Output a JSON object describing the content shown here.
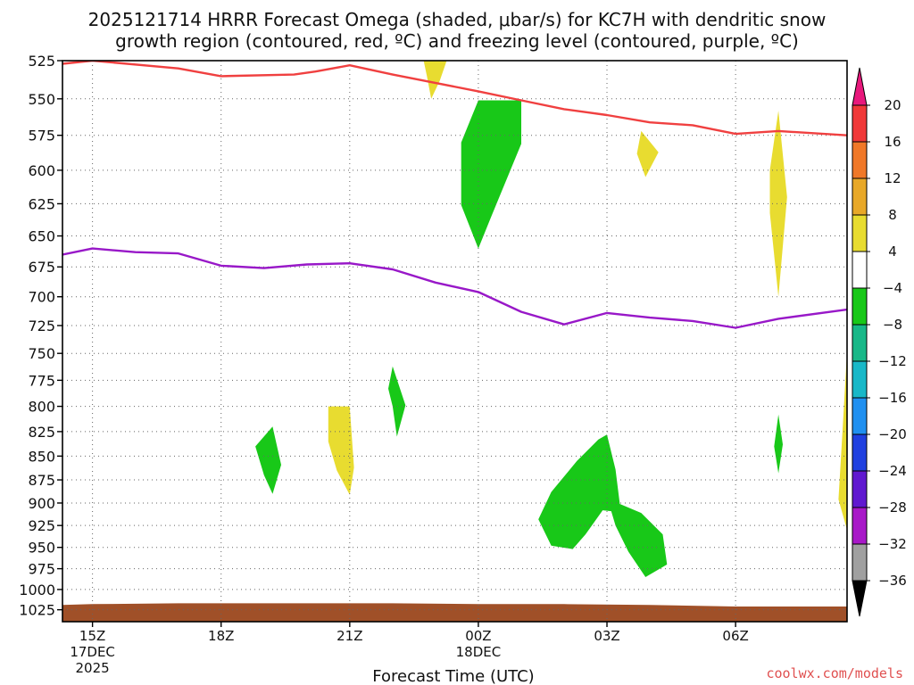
{
  "title_line1": "2025121714 HRRR Forecast Omega (shaded, μbar/s) for KC7H with dendritic snow",
  "title_line2": "growth region (contoured, red, ºC) and freezing level (contoured, purple, ºC)",
  "credit": "coolwx.com/models",
  "chart_data": {
    "type": "time-height cross-section",
    "xlabel": "Forecast Time (UTC)",
    "x_range_hours": [
      14.3,
      32.6
    ],
    "x_ticks": [
      {
        "hour": 15,
        "label": "15Z",
        "sub1": "17DEC",
        "sub2": "2025"
      },
      {
        "hour": 18,
        "label": "18Z",
        "sub1": "",
        "sub2": ""
      },
      {
        "hour": 21,
        "label": "21Z",
        "sub1": "",
        "sub2": ""
      },
      {
        "hour": 24,
        "label": "00Z",
        "sub1": "18DEC",
        "sub2": ""
      },
      {
        "hour": 27,
        "label": "03Z",
        "sub1": "",
        "sub2": ""
      },
      {
        "hour": 30,
        "label": "06Z",
        "sub1": "",
        "sub2": ""
      }
    ],
    "y_axis": "pressure (mb), log scale, inverted",
    "y_range": [
      525,
      1040
    ],
    "y_ticks": [
      525,
      550,
      575,
      600,
      625,
      650,
      675,
      700,
      725,
      750,
      775,
      800,
      825,
      850,
      875,
      900,
      925,
      950,
      975,
      1000,
      1025
    ],
    "grid": true,
    "colorbar": {
      "labels": [
        20,
        16,
        12,
        8,
        4,
        -4,
        -8,
        -12,
        -16,
        -20,
        -24,
        -28,
        -32,
        -36
      ],
      "colors": [
        "#f03838",
        "#f07828",
        "#e8a828",
        "#e8dc30",
        "#ffffff",
        "#18c818",
        "#18b888",
        "#18b8c8",
        "#2090f0",
        "#2040e0",
        "#6018d0",
        "#a818c8",
        "#a0a0a0"
      ],
      "top_arrow_color": "#e8187c",
      "bottom_arrow_color": "#000000"
    },
    "contours": [
      {
        "name": "dendritic growth (red)",
        "color": "#f04040",
        "points": [
          [
            14.3,
            527
          ],
          [
            15,
            525
          ],
          [
            17,
            530
          ],
          [
            18,
            535
          ],
          [
            19.7,
            534
          ],
          [
            20.2,
            532
          ],
          [
            21,
            528
          ],
          [
            22,
            534
          ],
          [
            24,
            545
          ],
          [
            25,
            551
          ],
          [
            26,
            557
          ],
          [
            27,
            561
          ],
          [
            28,
            566
          ],
          [
            29,
            568
          ],
          [
            30,
            574
          ],
          [
            31,
            572
          ],
          [
            32.6,
            575
          ]
        ]
      },
      {
        "name": "freezing level (purple)",
        "color": "#9818c8",
        "points": [
          [
            14.3,
            665
          ],
          [
            15,
            660
          ],
          [
            16,
            663
          ],
          [
            17,
            664
          ],
          [
            18,
            674
          ],
          [
            19,
            676
          ],
          [
            20,
            673
          ],
          [
            21,
            672
          ],
          [
            22,
            677
          ],
          [
            23,
            688
          ],
          [
            24,
            696
          ],
          [
            25,
            713
          ],
          [
            26,
            724
          ],
          [
            27,
            714
          ],
          [
            28,
            718
          ],
          [
            29,
            721
          ],
          [
            30,
            727
          ],
          [
            31,
            719
          ],
          [
            32.6,
            711
          ]
        ]
      }
    ],
    "shaded_regions": [
      {
        "value": 6,
        "color": "#e8dc30",
        "points": [
          [
            22.7,
            522
          ],
          [
            23.3,
            522
          ],
          [
            23.1,
            538
          ],
          [
            22.9,
            550
          ],
          [
            22.8,
            535
          ]
        ]
      },
      {
        "value": -6,
        "color": "#18c818",
        "points": [
          [
            24,
            551
          ],
          [
            25,
            551
          ],
          [
            25,
            581
          ],
          [
            24.3,
            635
          ],
          [
            24,
            660
          ],
          [
            23.6,
            626
          ],
          [
            23.6,
            580
          ]
        ]
      },
      {
        "value": 6,
        "color": "#e8dc30",
        "points": [
          [
            27.8,
            572
          ],
          [
            28.2,
            587
          ],
          [
            27.9,
            605
          ],
          [
            27.7,
            588
          ]
        ]
      },
      {
        "value": 6,
        "color": "#e8dc30",
        "points": [
          [
            31,
            558
          ],
          [
            31.2,
            620
          ],
          [
            31,
            700
          ],
          [
            30.8,
            632
          ],
          [
            30.8,
            600
          ]
        ]
      },
      {
        "value": 6,
        "color": "#e8dc30",
        "points": [
          [
            32.6,
            748
          ],
          [
            32.6,
            930
          ],
          [
            32.4,
            896
          ],
          [
            32.5,
            820
          ]
        ]
      },
      {
        "value": -6,
        "color": "#18c818",
        "points": [
          [
            22,
            762
          ],
          [
            22.3,
            799
          ],
          [
            22.1,
            830
          ],
          [
            22,
            800
          ],
          [
            21.9,
            783
          ]
        ]
      },
      {
        "value": 6,
        "color": "#e8dc30",
        "points": [
          [
            20.5,
            800
          ],
          [
            21,
            800
          ],
          [
            21.1,
            862
          ],
          [
            21,
            891
          ],
          [
            20.7,
            865
          ],
          [
            20.5,
            835
          ]
        ]
      },
      {
        "value": -6,
        "color": "#18c818",
        "points": [
          [
            19.2,
            820
          ],
          [
            19.4,
            859
          ],
          [
            19.2,
            890
          ],
          [
            19,
            870
          ],
          [
            18.8,
            840
          ]
        ]
      },
      {
        "value": -6,
        "color": "#18c818",
        "points": [
          [
            27,
            828
          ],
          [
            27.2,
            864
          ],
          [
            27.3,
            901
          ],
          [
            27.8,
            911
          ],
          [
            28.3,
            935
          ],
          [
            28.4,
            970
          ],
          [
            27.9,
            985
          ],
          [
            27.5,
            955
          ],
          [
            27.2,
            925
          ],
          [
            27.1,
            909
          ],
          [
            26.9,
            908
          ],
          [
            26.5,
            935
          ],
          [
            26.2,
            952
          ],
          [
            25.7,
            948
          ],
          [
            25.4,
            918
          ],
          [
            25.7,
            888
          ],
          [
            26.3,
            855
          ],
          [
            26.8,
            833
          ]
        ]
      },
      {
        "value": -6,
        "color": "#18c818",
        "points": [
          [
            31,
            808
          ],
          [
            31.1,
            838
          ],
          [
            31,
            868
          ],
          [
            30.9,
            840
          ]
        ]
      }
    ],
    "terrain": {
      "color": "#a05028",
      "points": [
        [
          14.3,
          1019
        ],
        [
          15,
          1018
        ],
        [
          17,
          1017
        ],
        [
          19,
          1017
        ],
        [
          22,
          1017
        ],
        [
          24,
          1018
        ],
        [
          26,
          1018
        ],
        [
          28,
          1019
        ],
        [
          30,
          1021
        ],
        [
          31,
          1021
        ],
        [
          32.6,
          1021
        ]
      ]
    }
  }
}
